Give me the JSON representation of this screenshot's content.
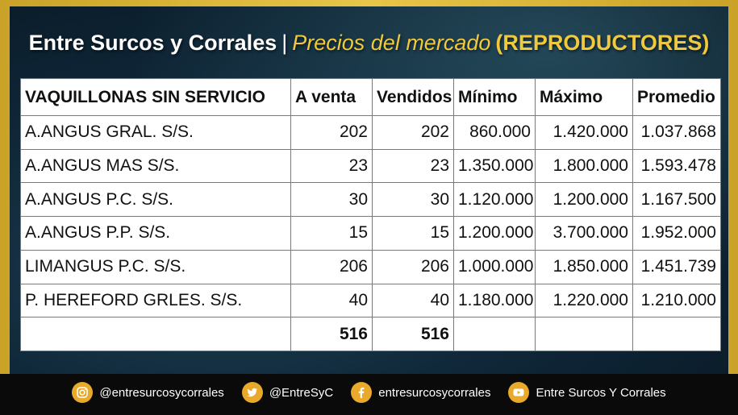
{
  "header": {
    "brand": "Entre Surcos y Corrales",
    "separator": "|",
    "subtitle": "Precios del mercado",
    "category": "(REPRODUCTORES)"
  },
  "table": {
    "columns": [
      "VAQUILLONAS SIN SERVICIO",
      "A venta",
      "Vendidos",
      "Mínimo",
      "Máximo",
      "Promedio"
    ],
    "rows": [
      [
        "A.ANGUS GRAL. S/S.",
        "202",
        "202",
        "860.000",
        "1.420.000",
        "1.037.868"
      ],
      [
        "A.ANGUS MAS S/S.",
        "23",
        "23",
        "1.350.000",
        "1.800.000",
        "1.593.478"
      ],
      [
        "A.ANGUS P.C. S/S.",
        "30",
        "30",
        "1.120.000",
        "1.200.000",
        "1.167.500"
      ],
      [
        "A.ANGUS P.P. S/S.",
        "15",
        "15",
        "1.200.000",
        "3.700.000",
        "1.952.000"
      ],
      [
        "LIMANGUS P.C. S/S.",
        "206",
        "206",
        "1.000.000",
        "1.850.000",
        "1.451.739"
      ],
      [
        "P. HEREFORD GRLES. S/S.",
        "40",
        "40",
        "1.180.000",
        "1.220.000",
        "1.210.000"
      ]
    ],
    "totals": [
      "",
      "516",
      "516",
      "",
      "",
      ""
    ]
  },
  "footer": {
    "social": [
      {
        "icon": "instagram-icon",
        "label": "@entresurcosycorrales"
      },
      {
        "icon": "twitter-icon",
        "label": "@EntreSyC"
      },
      {
        "icon": "facebook-icon",
        "label": "entresurcosycorrales"
      },
      {
        "icon": "youtube-icon",
        "label": "Entre Surcos Y Corrales"
      }
    ]
  },
  "colors": {
    "accent_gold": "#f0c93c",
    "frame_gold": "#c9a227",
    "background_teal": "#0f2738"
  }
}
